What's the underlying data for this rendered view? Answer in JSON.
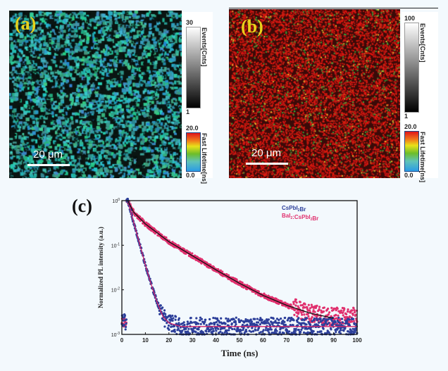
{
  "panels": [
    {
      "label": "(a)",
      "scale_bar": "20 μm",
      "events_max": "30",
      "events_min": "1",
      "events_title": "Events[Cnts]",
      "lifetime_max": "20.0",
      "lifetime_min": "0.0",
      "lifetime_title": "Fast Lifetime[ns]",
      "dominant_color": "#2fb0a8"
    },
    {
      "label": "(b)",
      "scale_bar": "20 μm",
      "events_max": "100",
      "events_min": "1",
      "events_title": "Events[Cnts]",
      "lifetime_max": "20.0",
      "lifetime_min": "0.0",
      "lifetime_title": "Fast Lifetime[ns]",
      "dominant_color": "#d81a14"
    }
  ],
  "chart_data": {
    "panel_label": "(c)",
    "type": "scatter",
    "xlabel": "Time (ns)",
    "ylabel": "Normalized PL intensity (a.u.)",
    "xlim": [
      0,
      100
    ],
    "ylim": [
      0.001,
      1
    ],
    "yscale": "log",
    "x_ticks": [
      "0",
      "10",
      "20",
      "30",
      "40",
      "50",
      "60",
      "70",
      "80",
      "90",
      "100"
    ],
    "y_ticks": [
      {
        "base": "10",
        "exp": "0"
      },
      {
        "base": "10",
        "exp": "-1"
      },
      {
        "base": "10",
        "exp": "-2"
      },
      {
        "base": "10",
        "exp": "-3"
      }
    ],
    "grid": false,
    "legend_placement": "top-right",
    "series": [
      {
        "name_parts": [
          {
            "t": "CsPbI"
          },
          {
            "sub": "2"
          },
          {
            "t": "Br"
          }
        ],
        "color": "#2c3f9a",
        "fit_color": "#d0246a",
        "fit": {
          "x": [
            2.5,
            5,
            7.5,
            10,
            12.5,
            15,
            17.5,
            20,
            25,
            100
          ],
          "y": [
            1,
            0.33,
            0.11,
            0.036,
            0.013,
            0.0052,
            0.0025,
            0.0018,
            0.0015,
            0.0015
          ]
        },
        "baseline": 0.0015
      },
      {
        "name_parts": [
          {
            "t": "BaI"
          },
          {
            "sub": "2"
          },
          {
            "t": ":CsPbI"
          },
          {
            "sub": "2"
          },
          {
            "t": "Br"
          }
        ],
        "color": "#e0306e",
        "fit_color": "#111111",
        "fit": {
          "x": [
            2.5,
            5,
            10,
            20,
            30,
            40,
            50,
            60,
            70,
            80,
            90
          ],
          "y": [
            1,
            0.55,
            0.3,
            0.12,
            0.058,
            0.028,
            0.014,
            0.0075,
            0.0045,
            0.003,
            0.0023
          ]
        },
        "baseline": 0.0025
      }
    ]
  }
}
